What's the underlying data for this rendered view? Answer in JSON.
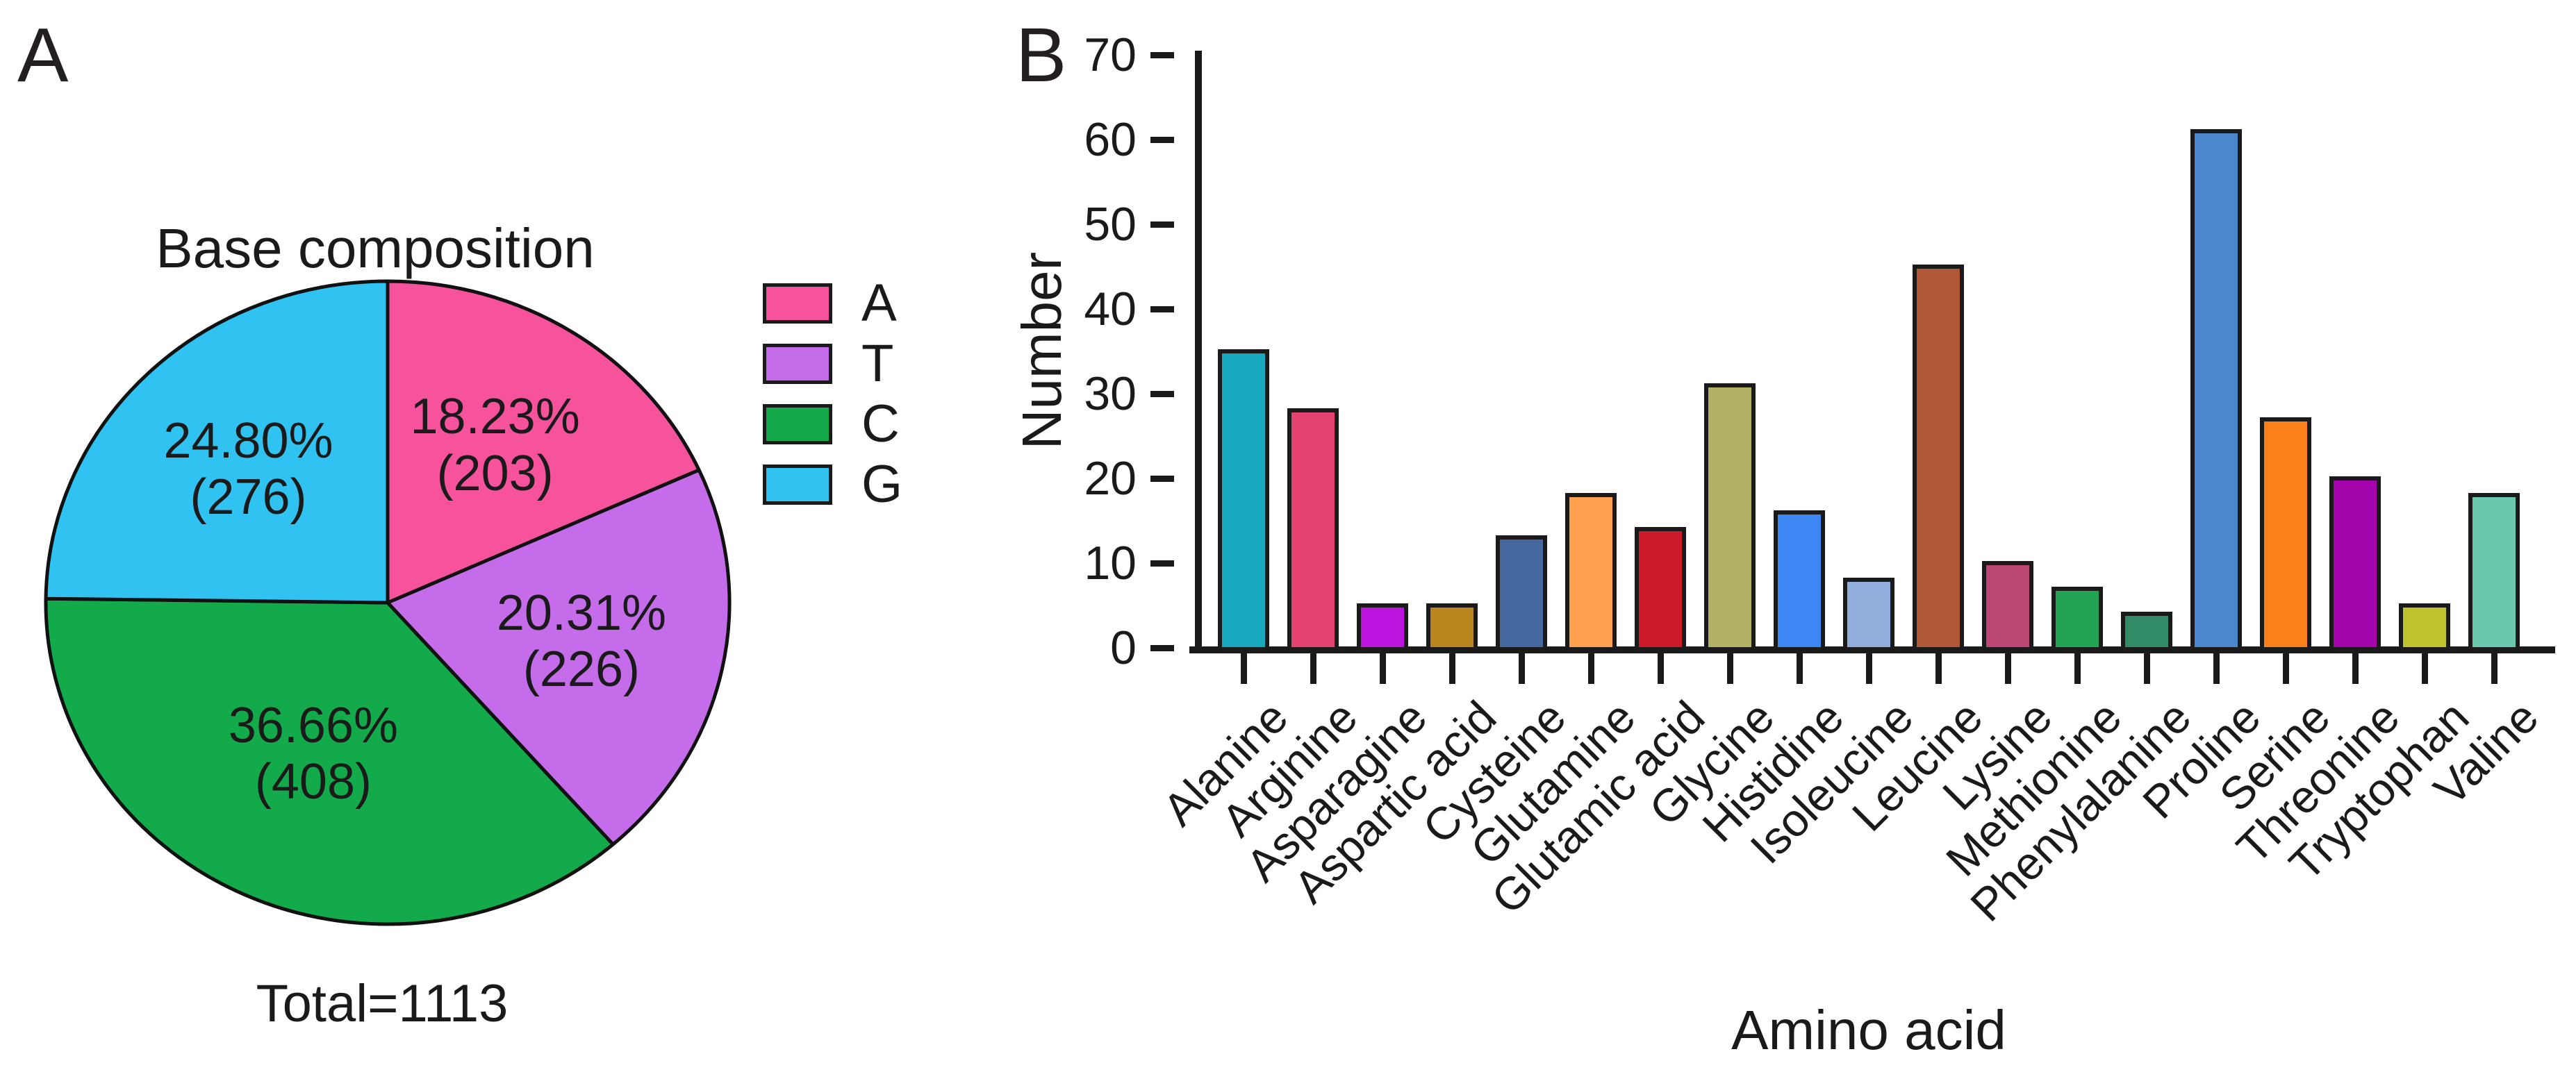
{
  "panels": {
    "a_label": "A",
    "b_label": "B"
  },
  "pie": {
    "title": "Base composition",
    "total_label": "Total=1113",
    "slices": [
      {
        "label": "A",
        "pct": 18.23,
        "count": 203,
        "pct_text": "18.23%",
        "count_text": "(203)",
        "color": "#F7539C"
      },
      {
        "label": "T",
        "pct": 20.31,
        "count": 226,
        "pct_text": "20.31%",
        "count_text": "(226)",
        "color": "#C46CEA"
      },
      {
        "label": "C",
        "pct": 36.66,
        "count": 408,
        "pct_text": "36.66%",
        "count_text": "(408)",
        "color": "#13AA4B"
      },
      {
        "label": "G",
        "pct": 24.8,
        "count": 276,
        "pct_text": "24.80%",
        "count_text": "(276)",
        "color": "#30C2F1"
      }
    ]
  },
  "bar": {
    "ylabel": "Number",
    "xlabel": "Amino acid",
    "yticks": [
      0,
      10,
      20,
      30,
      40,
      50,
      60,
      70
    ],
    "categories": [
      "Alanine",
      "Arginine",
      "Asparagine",
      "Aspartic acid",
      "Cysteine",
      "Glutamine",
      "Glutamic acid",
      "Glycine",
      "Histidine",
      "Isoleucine",
      "Leucine",
      "Lysine",
      "Methionine",
      "Phenylalanine",
      "Proline",
      "Serine",
      "Threonine",
      "Tryptophan",
      "Valine"
    ],
    "values": [
      35,
      28,
      5,
      5,
      13,
      18,
      14,
      31,
      16,
      8,
      45,
      10,
      7,
      4,
      61,
      27,
      20,
      5,
      18
    ],
    "colors": [
      "#17A8BE",
      "#E5436F",
      "#BC13DF",
      "#B7871E",
      "#45699E",
      "#FFA14F",
      "#CC1A2B",
      "#B2B264",
      "#3D87F5",
      "#92AEDC",
      "#B05836",
      "#BB4573",
      "#22A453",
      "#308B66",
      "#4C87CE",
      "#FC8019",
      "#A304AC",
      "#C1C32C",
      "#6BC8AF"
    ]
  },
  "chart_data": [
    {
      "type": "pie",
      "title": "Base composition",
      "labels": [
        "A",
        "T",
        "C",
        "G"
      ],
      "values_pct": [
        18.23,
        20.31,
        36.66,
        24.8
      ],
      "counts": [
        203,
        226,
        408,
        276
      ],
      "total": 1113,
      "total_text": "Total=1113",
      "colors": [
        "#F7539C",
        "#C46CEA",
        "#13AA4B",
        "#30C2F1"
      ],
      "start_angle": "12 o'clock",
      "direction": "clockwise",
      "legend_position": "right"
    },
    {
      "type": "bar",
      "title": "",
      "xlabel": "Amino acid",
      "ylabel": "Number",
      "ylim": [
        0,
        70
      ],
      "ytick_step": 10,
      "grid": false,
      "categories": [
        "Alanine",
        "Arginine",
        "Asparagine",
        "Aspartic acid",
        "Cysteine",
        "Glutamine",
        "Glutamic acid",
        "Glycine",
        "Histidine",
        "Isoleucine",
        "Leucine",
        "Lysine",
        "Methionine",
        "Phenylalanine",
        "Proline",
        "Serine",
        "Threonine",
        "Tryptophan",
        "Valine"
      ],
      "values": [
        35,
        28,
        5,
        5,
        13,
        18,
        14,
        31,
        16,
        8,
        45,
        10,
        7,
        4,
        61,
        27,
        20,
        5,
        18
      ],
      "colors": [
        "#17A8BE",
        "#E5436F",
        "#BC13DF",
        "#B7871E",
        "#45699E",
        "#FFA14F",
        "#CC1A2B",
        "#B2B264",
        "#3D87F5",
        "#92AEDC",
        "#B05836",
        "#BB4573",
        "#22A453",
        "#308B66",
        "#4C87CE",
        "#FC8019",
        "#A304AC",
        "#C1C32C",
        "#6BC8AF"
      ]
    }
  ]
}
